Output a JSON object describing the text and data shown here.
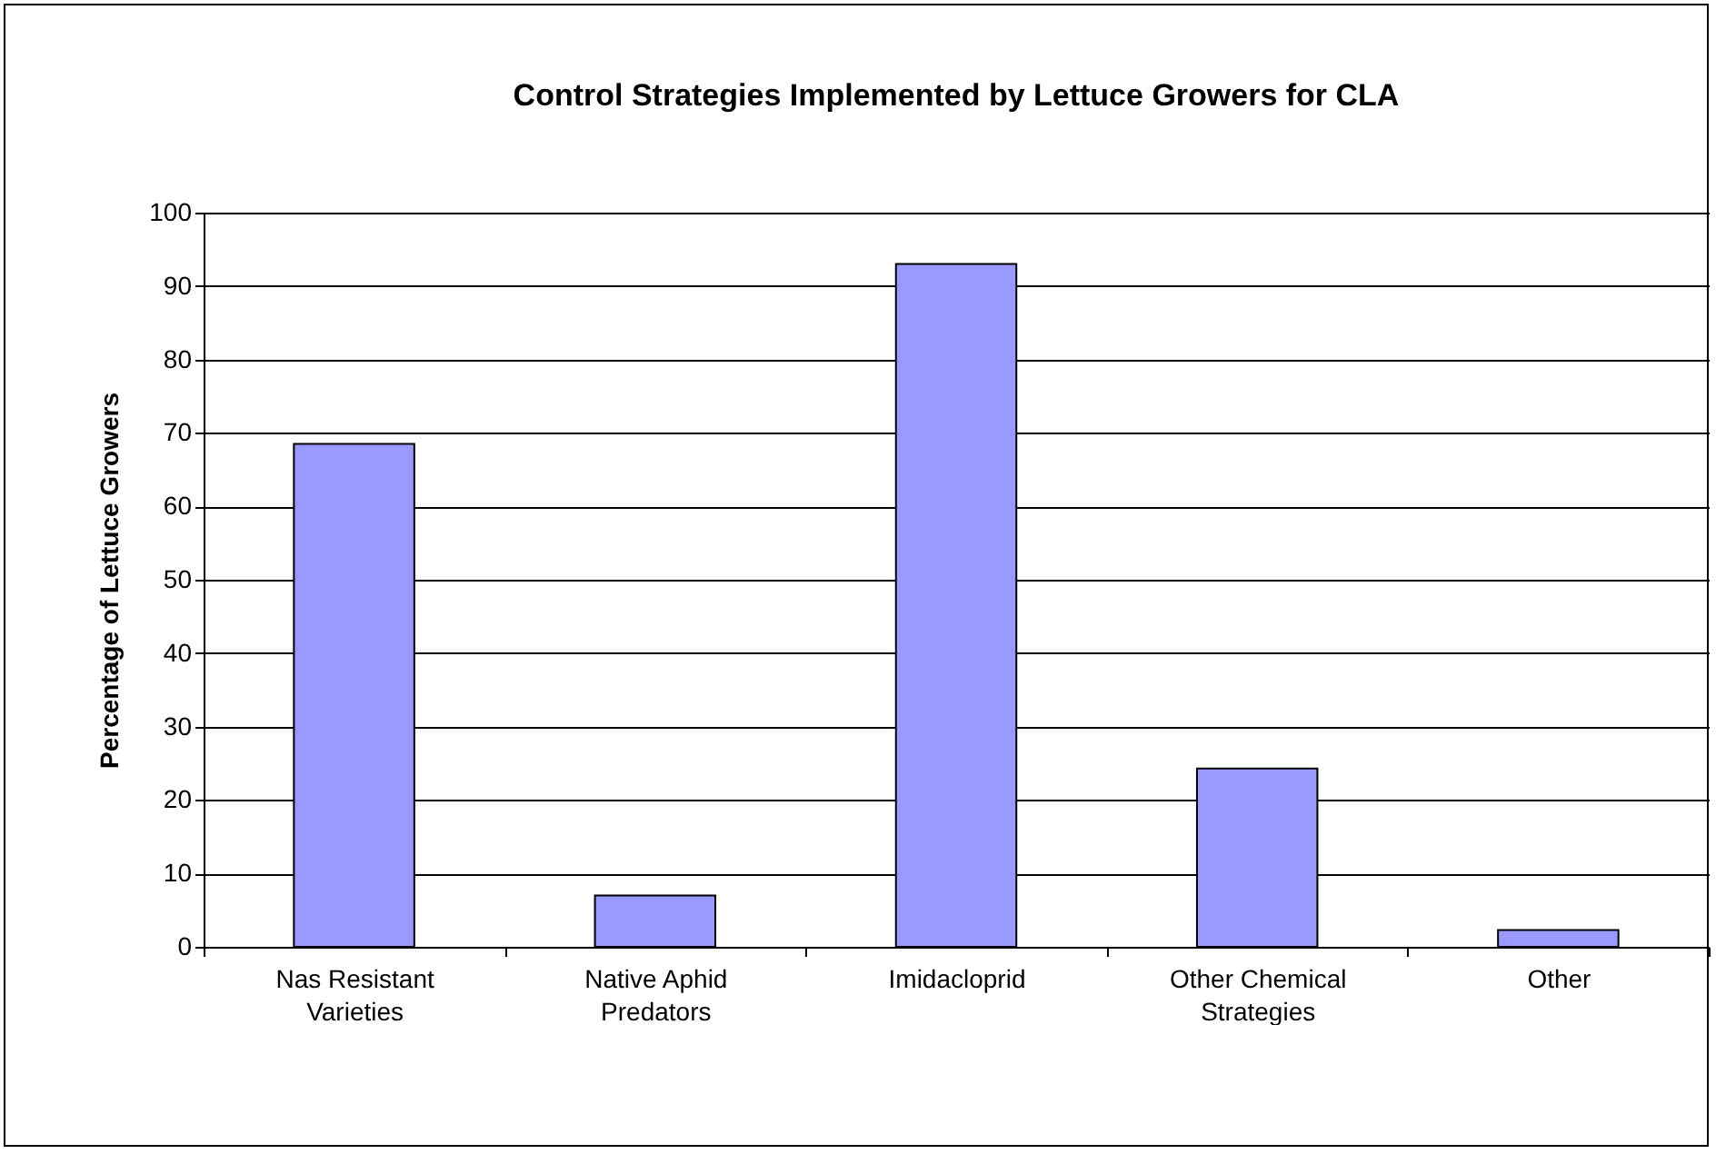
{
  "chart_data": {
    "type": "bar",
    "title": "Control Strategies Implemented by Lettuce Growers for CLA",
    "ylabel": "Percentage of Lettuce Growers",
    "categories": [
      "Nas Resistant\nVarieties",
      "Native Aphid\nPredators",
      "Imidacloprid",
      "Other Chemical\nStrategies",
      "Other"
    ],
    "values": [
      68.5,
      7,
      93,
      24.3,
      2.3
    ],
    "color": "#9999ff",
    "ylim": [
      0,
      100
    ],
    "yticks": [
      0,
      10,
      20,
      30,
      40,
      50,
      60,
      70,
      80,
      90,
      100
    ],
    "grid": "y"
  }
}
